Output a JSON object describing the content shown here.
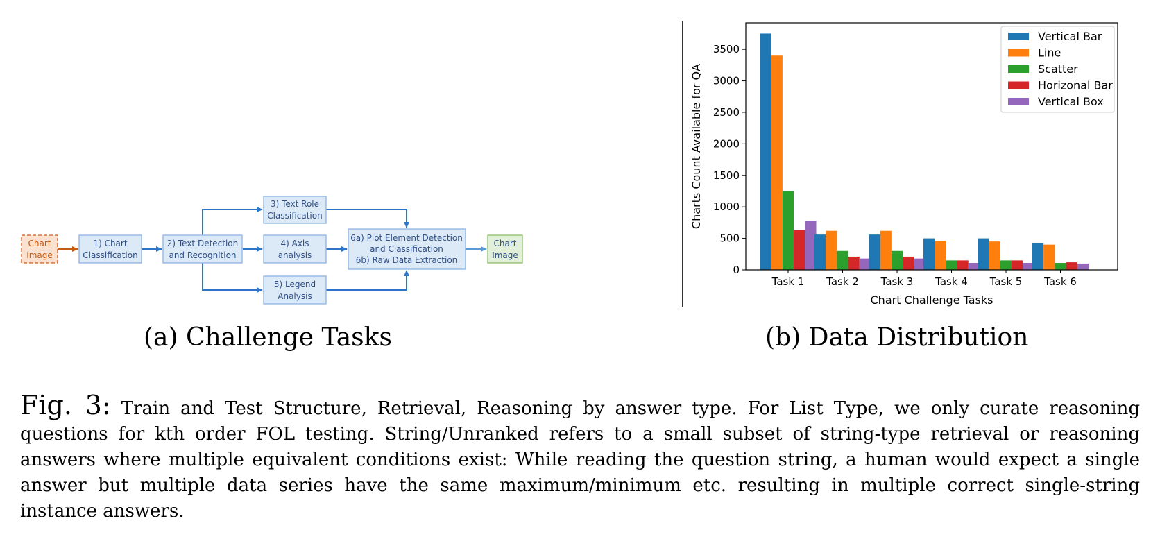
{
  "diagram": {
    "nodes": {
      "chart_image_in": [
        "Chart",
        "Image"
      ],
      "chart_classification": [
        "1) Chart",
        "Classification"
      ],
      "text_detection": [
        "2) Text Detection",
        "and Recognition"
      ],
      "text_role": [
        "3) Text Role",
        "Classification"
      ],
      "axis_analysis": [
        "4) Axis",
        "analysis"
      ],
      "legend_analysis": [
        "5) Legend",
        "Analysis"
      ],
      "plot_element": [
        "6a) Plot Element Detection",
        "and Classification",
        "6b) Raw Data Extraction"
      ],
      "chart_image_out": [
        "Chart",
        "Image"
      ]
    },
    "colors": {
      "box_fill": "#dce9f7",
      "box_border": "#8db4e2",
      "arrow": "#2e75c7",
      "input_accent": "#c55a11",
      "output_fill": "#e2f0d9"
    }
  },
  "subcaptions": {
    "a": "(a) Challenge Tasks",
    "b": "(b) Data Distribution"
  },
  "chart_data": {
    "type": "bar",
    "categories": [
      "Task 1",
      "Task 2",
      "Task 3",
      "Task 4",
      "Task 5",
      "Task 6"
    ],
    "series": [
      {
        "name": "Vertical Bar",
        "color": "#1f77b4",
        "values": [
          3750,
          560,
          560,
          500,
          500,
          430
        ]
      },
      {
        "name": "Line",
        "color": "#ff7f0e",
        "values": [
          3400,
          620,
          620,
          460,
          450,
          400
        ]
      },
      {
        "name": "Scatter",
        "color": "#2ca02c",
        "values": [
          1250,
          300,
          300,
          150,
          150,
          110
        ]
      },
      {
        "name": "Horizonal Bar",
        "color": "#d62728",
        "values": [
          630,
          210,
          210,
          150,
          150,
          120
        ]
      },
      {
        "name": "Vertical Box",
        "color": "#9467bd",
        "values": [
          780,
          180,
          180,
          110,
          110,
          100
        ]
      }
    ],
    "yticks": [
      0,
      500,
      1000,
      1500,
      2000,
      2500,
      3000,
      3500
    ],
    "ylim": [
      0,
      3920
    ],
    "xlabel": "Chart Challenge Tasks",
    "ylabel": "Charts Count Available for QA",
    "legend_position": "top-right",
    "grid": false
  },
  "caption": {
    "label": "Fig. 3:",
    "text": "Train and Test Structure, Retrieval, Reasoning by answer type. For List Type, we only curate reasoning questions for kth order FOL testing. String/Unranked refers to a small subset of string-type retrieval or reasoning answers where multiple equivalent conditions exist: While reading the question string, a human would expect a single answer but multiple data series have the same maximum/minimum etc. resulting in multiple correct single-string instance answers."
  }
}
